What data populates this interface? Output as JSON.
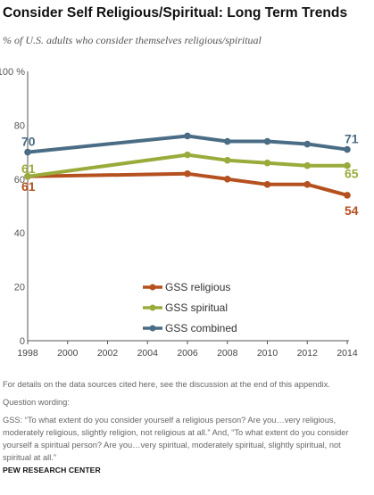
{
  "title": "Consider Self Religious/Spiritual: Long Term Trends",
  "subtitle": "% of U.S. adults who consider themselves religious/spiritual",
  "chart_data": {
    "type": "line",
    "x": [
      1998,
      2006,
      2008,
      2010,
      2012,
      2014
    ],
    "x_ticks": [
      "1998",
      "2000",
      "2002",
      "2004",
      "2006",
      "2008",
      "2010",
      "2012",
      "2014"
    ],
    "y_ticks": [
      "100 %",
      "80",
      "60",
      "40",
      "20",
      "0"
    ],
    "xlim": [
      1998,
      2014
    ],
    "ylim": [
      0,
      100
    ],
    "grid": false,
    "legend": "center",
    "series": [
      {
        "name": "GSS religious",
        "color": "#b5501f",
        "values": [
          61,
          62,
          60,
          58,
          58,
          54
        ],
        "start_label": "61",
        "end_label": "54"
      },
      {
        "name": "GSS spiritual",
        "color": "#9aab3c",
        "values": [
          61,
          69,
          67,
          66,
          65,
          65
        ],
        "start_label": "61",
        "end_label": "65"
      },
      {
        "name": "GSS combined",
        "color": "#4a6d85",
        "values": [
          70,
          76,
          74,
          74,
          73,
          71
        ],
        "start_label": "70",
        "end_label": "71"
      }
    ]
  },
  "footer": {
    "note": "For details on the data sources cited here, see the discussion at the end of this appendix.",
    "wording_label": "Question wording:",
    "wording": "GSS: “To what extent do you consider yourself a religious person? Are you…very religious, moderately religious, slightly religion, not religious at all.” And, “To what extent do you consider yourself a spiritual person? Are you…very spiritual, moderately spiritual, slightly spiritual, not spiritual at all.”",
    "source": "PEW RESEARCH CENTER"
  }
}
